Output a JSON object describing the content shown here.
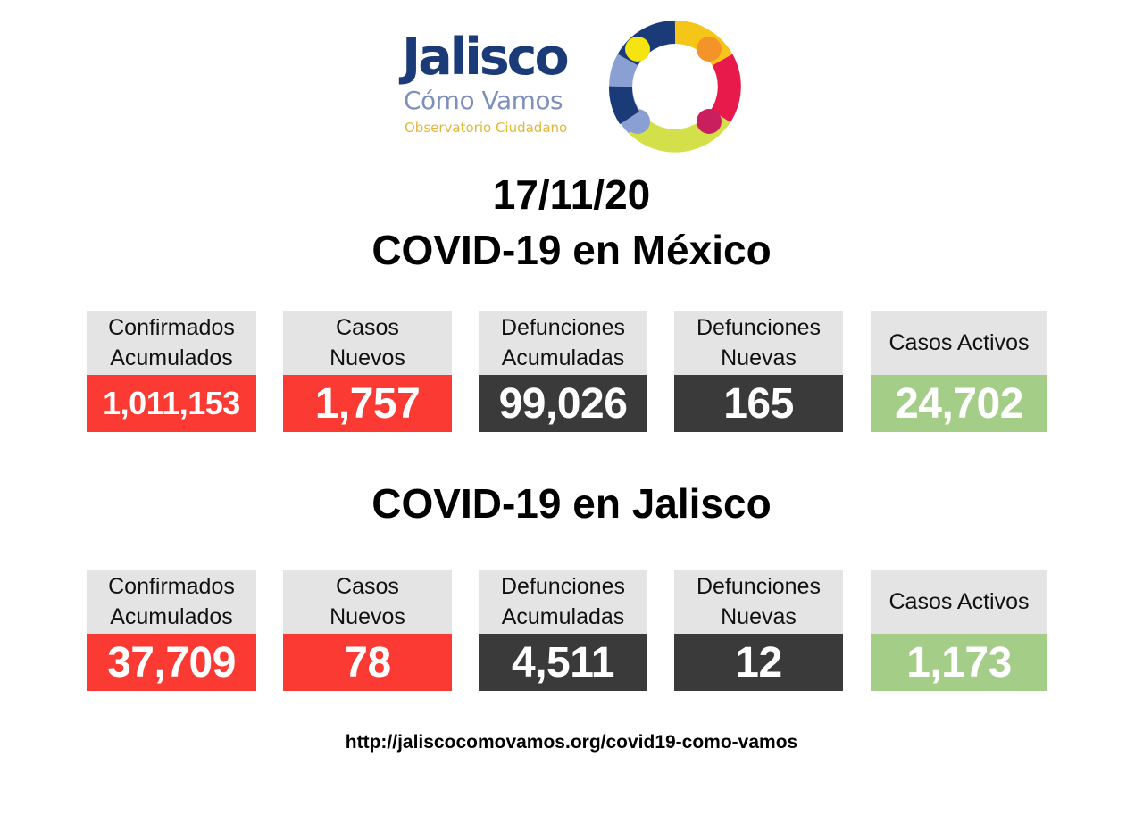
{
  "logo": {
    "name": "Jalisco",
    "subtitle": "Cómo Vamos",
    "tagline": "Observatorio Ciudadano",
    "ring_colors": [
      "#f5c518",
      "#f3932a",
      "#e8194b",
      "#c81f5e",
      "#d4e04a",
      "#8aa0d3",
      "#1a3a78"
    ]
  },
  "date": "17/11/20",
  "mexico": {
    "title": "COVID-19 en México",
    "cards": [
      {
        "label_line1": "Confirmados",
        "label_line2": "Acumulados",
        "value": "1,011,153",
        "color": "#fb3a33"
      },
      {
        "label_line1": "Casos",
        "label_line2": "Nuevos",
        "value": "1,757",
        "color": "#fb3a33"
      },
      {
        "label_line1": "Defunciones",
        "label_line2": "Acumuladas",
        "value": "99,026",
        "color": "#3b3a3a"
      },
      {
        "label_line1": "Defunciones",
        "label_line2": "Nuevas",
        "value": "165",
        "color": "#3b3a3a"
      },
      {
        "label_line1": "Casos Activos",
        "label_line2": "",
        "value": "24,702",
        "color": "#a4cd88"
      }
    ]
  },
  "jalisco": {
    "title": "COVID-19 en Jalisco",
    "cards": [
      {
        "label_line1": "Confirmados",
        "label_line2": "Acumulados",
        "value": "37,709",
        "color": "#fb3a33"
      },
      {
        "label_line1": "Casos",
        "label_line2": "Nuevos",
        "value": "78",
        "color": "#fb3a33"
      },
      {
        "label_line1": "Defunciones",
        "label_line2": "Acumuladas",
        "value": "4,511",
        "color": "#3b3a3a"
      },
      {
        "label_line1": "Defunciones",
        "label_line2": "Nuevas",
        "value": "12",
        "color": "#3b3a3a"
      },
      {
        "label_line1": "Casos Activos",
        "label_line2": "",
        "value": "1,173",
        "color": "#a4cd88"
      }
    ]
  },
  "footer": {
    "url": "http://jaliscocomovamos.org/covid19-como-vamos"
  }
}
